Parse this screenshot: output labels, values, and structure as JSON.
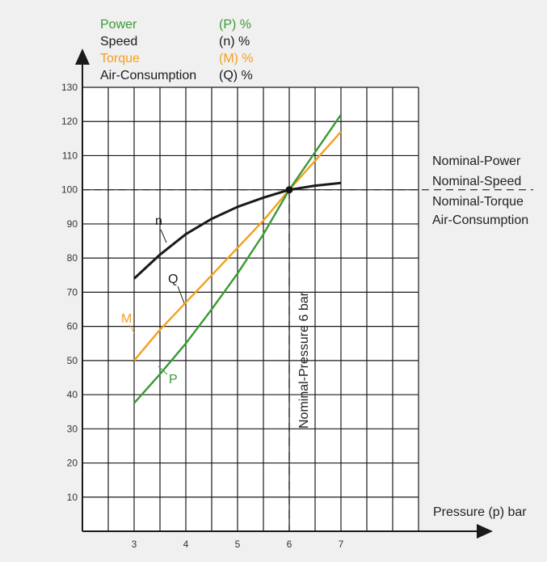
{
  "legend": [
    {
      "name": "Power",
      "symbol": "(P) %",
      "color": "#3a9a34"
    },
    {
      "name": "Speed",
      "symbol": "(n) %",
      "color": "#1a1a1a"
    },
    {
      "name": "Torque",
      "symbol": "(M) %",
      "color": "#f3a020"
    },
    {
      "name": "Air-Consumption",
      "symbol": "(Q) %",
      "color": "#1a1a1a"
    }
  ],
  "nominal_labels": [
    "Nominal-Power",
    "Nominal-Speed",
    "Nominal-Torque",
    "Air-Consumption"
  ],
  "x_axis_label": "Pressure (p) bar",
  "vertical_annotation": "Nominal-Pressure 6 bar",
  "curve_labels": {
    "n": "n",
    "Q": "Q",
    "M": "M",
    "P": "P"
  },
  "colors": {
    "background": "#f0f0f0",
    "plot_area": "#ffffff",
    "grid": "#1a1a1a"
  },
  "chart_data": {
    "type": "line",
    "x_ticks": [
      3,
      4,
      5,
      6,
      7
    ],
    "y_ticks": [
      10,
      20,
      30,
      40,
      50,
      60,
      70,
      80,
      90,
      100,
      110,
      120,
      130
    ],
    "xlim": [
      2.0,
      8.5
    ],
    "ylim": [
      0,
      130
    ],
    "grid": true,
    "reference_lines": {
      "y": 100,
      "x": 6
    },
    "nominal_point": {
      "x": 6,
      "y": 100
    },
    "series": [
      {
        "name": "Speed",
        "key": "n",
        "color": "#1a1a1a",
        "x": [
          3,
          3.5,
          4,
          4.5,
          5,
          5.5,
          6,
          6.5,
          7
        ],
        "y": [
          74,
          81,
          87,
          91.5,
          95,
          97.7,
          100,
          101.2,
          102
        ]
      },
      {
        "name": "Torque",
        "key": "M",
        "color": "#f3a020",
        "x": [
          3,
          3.5,
          4,
          4.5,
          5,
          5.5,
          6,
          6.5,
          7
        ],
        "y": [
          50,
          59,
          67,
          75,
          83,
          91,
          100,
          108.5,
          117
        ]
      },
      {
        "name": "Power",
        "key": "P",
        "color": "#3a9a34",
        "x": [
          3,
          3.5,
          4,
          4.5,
          5,
          5.5,
          6,
          6.5,
          7
        ],
        "y": [
          37.5,
          46,
          55,
          65,
          75.5,
          87,
          100,
          111,
          122
        ]
      }
    ]
  }
}
